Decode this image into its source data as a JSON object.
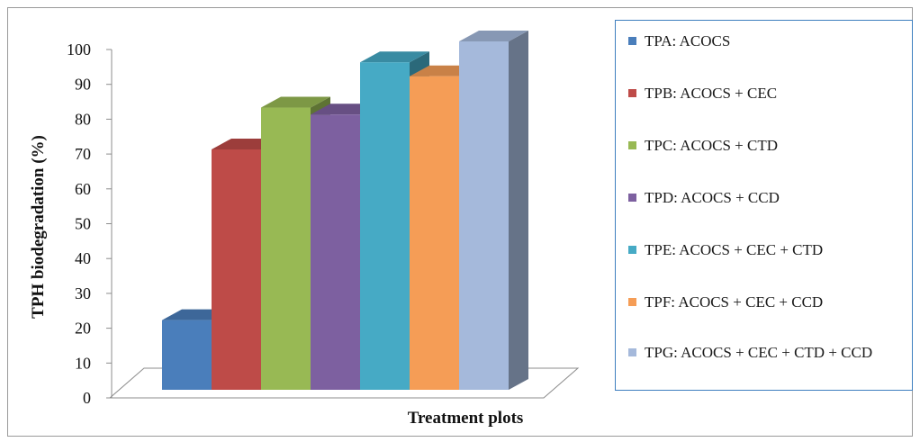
{
  "chart_data": {
    "type": "bar",
    "style": "3d",
    "xlabel": "Treatment plots",
    "ylabel": "TPH biodegradation (%)",
    "ylim": [
      0,
      100
    ],
    "yticks": [
      "0",
      "10",
      "20",
      "30",
      "40",
      "50",
      "60",
      "70",
      "80",
      "90",
      "100"
    ],
    "grid": false,
    "legend_position": "right",
    "categories": [
      "TPA: ACOCS",
      "TPB: ACOCS + CEC",
      "TPC: ACOCS + CTD",
      "TPD: ACOCS + CCD",
      "TPE: ACOCS + CEC + CTD",
      "TPF: ACOCS + CEC + CCD",
      "TPG: ACOCS + CEC + CTD + CCD"
    ],
    "values": [
      20,
      69,
      81,
      79,
      94,
      90,
      100
    ],
    "colors": [
      "#4A7EBB",
      "#BE4B48",
      "#98B954",
      "#7D60A0",
      "#46AAC5",
      "#F59D56",
      "#A5B9DB"
    ]
  }
}
